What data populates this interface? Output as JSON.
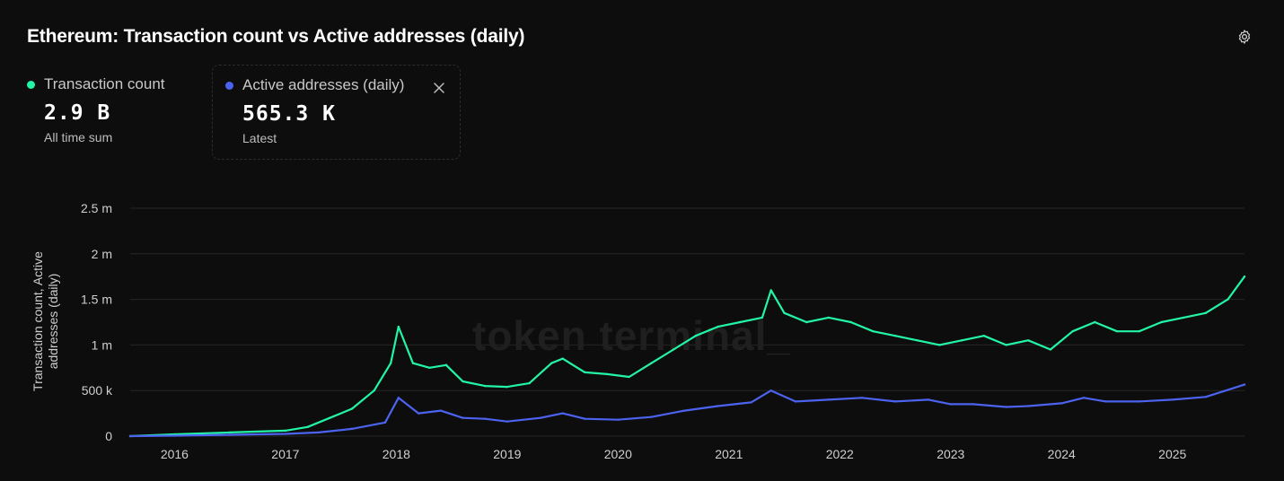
{
  "title": "Ethereum: Transaction count vs Active addresses (daily)",
  "settings_icon": "gear-icon",
  "legend": [
    {
      "name": "Transaction count",
      "value": "2.9 B",
      "sub": "All time sum",
      "color": "#22f5a6"
    },
    {
      "name": "Active addresses (daily)",
      "value": "565.3 K",
      "sub": "Latest",
      "color": "#4c63f0",
      "removable": true
    }
  ],
  "watermark": "token terminal_",
  "chart_data": {
    "type": "line",
    "ylabel": "Transaction count, Active addresses (daily)",
    "ylabel_lines": [
      "Transaction count, Active",
      "addresses (daily)"
    ],
    "y_ticks": [
      "0",
      "500 k",
      "1 m",
      "1.5 m",
      "2 m",
      "2.5 m"
    ],
    "y_tick_values": [
      0,
      500000,
      1000000,
      1500000,
      2000000,
      2500000
    ],
    "ylim": [
      0,
      2500000
    ],
    "x_ticks": [
      "2016",
      "2017",
      "2018",
      "2019",
      "2020",
      "2021",
      "2022",
      "2023",
      "2024",
      "2025"
    ],
    "x_tick_values": [
      2016.0,
      2017.0,
      2018.0,
      2019.0,
      2020.0,
      2021.0,
      2022.0,
      2023.0,
      2024.0,
      2025.0
    ],
    "xlim": [
      2015.6,
      2025.65
    ],
    "grid": true,
    "series": [
      {
        "name": "Transaction count",
        "color": "#22f5a6",
        "x": [
          2015.6,
          2016.0,
          2016.5,
          2017.0,
          2017.2,
          2017.4,
          2017.6,
          2017.8,
          2017.95,
          2018.02,
          2018.15,
          2018.3,
          2018.45,
          2018.6,
          2018.8,
          2019.0,
          2019.2,
          2019.4,
          2019.5,
          2019.7,
          2019.9,
          2020.1,
          2020.3,
          2020.5,
          2020.7,
          2020.9,
          2021.1,
          2021.3,
          2021.38,
          2021.5,
          2021.7,
          2021.9,
          2022.1,
          2022.3,
          2022.5,
          2022.7,
          2022.9,
          2023.1,
          2023.3,
          2023.5,
          2023.7,
          2023.9,
          2024.1,
          2024.3,
          2024.5,
          2024.7,
          2024.9,
          2025.1,
          2025.3,
          2025.5,
          2025.65
        ],
        "y": [
          0,
          20000,
          40000,
          60000,
          100000,
          200000,
          300000,
          500000,
          800000,
          1200000,
          800000,
          750000,
          780000,
          600000,
          550000,
          540000,
          580000,
          800000,
          850000,
          700000,
          680000,
          650000,
          800000,
          950000,
          1100000,
          1200000,
          1250000,
          1300000,
          1600000,
          1350000,
          1250000,
          1300000,
          1250000,
          1150000,
          1100000,
          1050000,
          1000000,
          1050000,
          1100000,
          1000000,
          1050000,
          950000,
          1150000,
          1250000,
          1150000,
          1150000,
          1250000,
          1300000,
          1350000,
          1500000,
          1750000
        ]
      },
      {
        "name": "Active addresses (daily)",
        "color": "#4c63f0",
        "x": [
          2015.6,
          2016.0,
          2016.5,
          2017.0,
          2017.3,
          2017.6,
          2017.9,
          2018.02,
          2018.2,
          2018.4,
          2018.6,
          2018.8,
          2019.0,
          2019.3,
          2019.5,
          2019.7,
          2020.0,
          2020.3,
          2020.6,
          2020.9,
          2021.2,
          2021.38,
          2021.6,
          2021.9,
          2022.2,
          2022.5,
          2022.8,
          2023.0,
          2023.2,
          2023.5,
          2023.7,
          2024.0,
          2024.2,
          2024.4,
          2024.7,
          2025.0,
          2025.3,
          2025.65
        ],
        "y": [
          0,
          5000,
          15000,
          25000,
          40000,
          80000,
          150000,
          420000,
          250000,
          280000,
          200000,
          190000,
          160000,
          200000,
          250000,
          190000,
          180000,
          210000,
          280000,
          330000,
          370000,
          500000,
          380000,
          400000,
          420000,
          380000,
          400000,
          350000,
          350000,
          320000,
          330000,
          360000,
          420000,
          380000,
          380000,
          400000,
          430000,
          565300
        ]
      }
    ]
  }
}
